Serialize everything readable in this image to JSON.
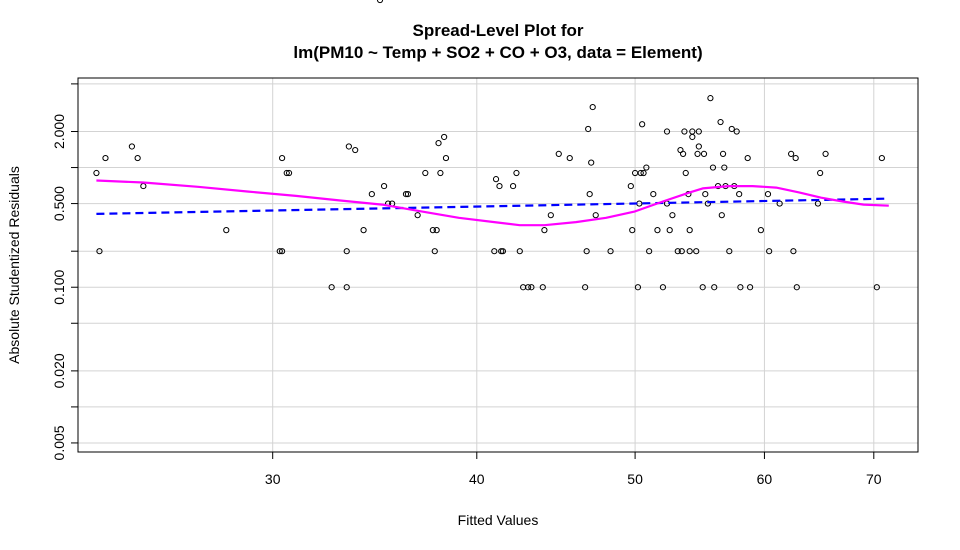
{
  "chart_data": {
    "type": "scatter",
    "title": "Spread-Level Plot for",
    "subtitle": "lm(PM10 ~ Temp + SO2 + CO + O3, data = Element)",
    "xlabel": "Fitted Values",
    "ylabel": "Absolute Studentized Residuals",
    "x_scale": "log",
    "y_scale": "log",
    "xlim": [
      22.8,
      74.5
    ],
    "ylim": [
      0.0042,
      5.6
    ],
    "x_ticks": [
      30,
      40,
      50,
      60,
      70
    ],
    "y_ticks": [
      0.005,
      0.02,
      0.1,
      0.5,
      2.0
    ],
    "y_tick_labels": [
      "0.005",
      "0.020",
      "0.100",
      "0.500",
      "2.000"
    ],
    "grid": true,
    "colors": {
      "points": "#000000",
      "fit_line": "#0000ff",
      "smoother": "#ff00ff",
      "grid": "#d3d3d3"
    },
    "series": [
      {
        "kind": "points",
        "x": [
          23.4,
          23.5,
          23.7,
          24.6,
          24.8,
          25.0,
          28.1,
          30.3,
          30.4,
          30.4,
          30.6,
          30.7,
          32.6,
          33.3,
          33.3,
          33.4,
          33.7,
          34.1,
          34.5,
          34.9,
          35.1,
          35.3,
          35.5,
          36.2,
          36.3,
          36.8,
          37.2,
          37.6,
          37.7,
          37.8,
          37.9,
          38.0,
          38.2,
          38.3,
          41.0,
          41.1,
          41.3,
          41.4,
          41.5,
          42.1,
          42.3,
          42.5,
          42.7,
          43.0,
          43.2,
          43.9,
          44.0,
          44.4,
          44.9,
          45.6,
          46.6,
          46.7,
          46.8,
          46.9,
          47.0,
          47.1,
          47.3,
          48.3,
          49.7,
          49.8,
          50.0,
          50.2,
          50.3,
          50.4,
          50.5,
          50.6,
          50.8,
          51.0,
          51.3,
          51.6,
          52.0,
          52.3,
          52.3,
          52.5,
          52.7,
          53.1,
          53.3,
          53.4,
          53.5,
          53.6,
          53.7,
          53.9,
          54.0,
          54.0,
          54.2,
          54.2,
          54.5,
          54.6,
          54.7,
          54.7,
          55.0,
          55.1,
          55.2,
          55.4,
          55.6,
          55.8,
          55.9,
          56.2,
          56.4,
          56.5,
          56.6,
          56.7,
          56.8,
          57.1,
          57.3,
          57.5,
          57.7,
          57.9,
          58.0,
          58.6,
          58.8,
          59.7,
          60.3,
          60.4,
          61.3,
          62.3,
          62.5,
          62.7,
          62.8,
          64.7,
          64.9,
          65.4,
          70.3,
          70.8
        ],
        "y": [
          0.9,
          0.2,
          1.2,
          1.5,
          1.2,
          0.7,
          0.3,
          0.2,
          0.2,
          1.2,
          0.9,
          0.9,
          0.1,
          0.2,
          0.1,
          1.5,
          1.4,
          0.3,
          0.6,
          0.0,
          0.7,
          0.5,
          0.5,
          0.6,
          0.6,
          0.4,
          0.9,
          0.3,
          0.2,
          0.3,
          1.6,
          0.9,
          1.8,
          1.2,
          0.2,
          0.8,
          0.7,
          0.2,
          0.2,
          0.7,
          0.9,
          0.2,
          0.1,
          0.1,
          0.1,
          0.1,
          0.3,
          0.4,
          1.3,
          1.2,
          0.1,
          0.2,
          2.1,
          0.6,
          1.1,
          3.2,
          0.4,
          0.2,
          0.7,
          0.3,
          0.9,
          0.1,
          0.5,
          0.9,
          2.3,
          0.9,
          1.0,
          0.2,
          0.6,
          0.3,
          0.1,
          2.0,
          0.5,
          0.3,
          0.4,
          0.2,
          1.4,
          0.2,
          1.3,
          2.0,
          0.9,
          0.6,
          0.3,
          0.2,
          1.8,
          2.0,
          0.2,
          1.3,
          1.5,
          2.0,
          0.1,
          1.3,
          0.6,
          0.5,
          3.8,
          1.0,
          0.1,
          0.7,
          2.4,
          0.4,
          1.3,
          1.0,
          0.7,
          0.2,
          2.1,
          0.7,
          2.0,
          0.6,
          0.1,
          1.2,
          0.1,
          0.3,
          0.6,
          0.2,
          0.5,
          1.3,
          0.2,
          1.2,
          0.1,
          0.5,
          0.9,
          1.3,
          0.1,
          1.2
        ]
      },
      {
        "kind": "line",
        "style": "dashed",
        "x": [
          23.4,
          71.5
        ],
        "y": [
          0.41,
          0.55
        ]
      },
      {
        "kind": "line",
        "style": "smooth",
        "x": [
          23.4,
          25.0,
          27.0,
          29.0,
          31.0,
          33.0,
          35.0,
          37.0,
          39.0,
          41.0,
          42.5,
          44.0,
          46.0,
          48.0,
          50.0,
          52.0,
          54.0,
          55.0,
          57.0,
          59.0,
          61.0,
          63.0,
          65.0,
          67.0,
          69.0,
          71.5
        ],
        "y": [
          0.78,
          0.75,
          0.69,
          0.63,
          0.58,
          0.53,
          0.49,
          0.43,
          0.38,
          0.35,
          0.33,
          0.33,
          0.35,
          0.38,
          0.43,
          0.52,
          0.62,
          0.67,
          0.7,
          0.7,
          0.68,
          0.62,
          0.56,
          0.52,
          0.49,
          0.48
        ]
      }
    ]
  }
}
